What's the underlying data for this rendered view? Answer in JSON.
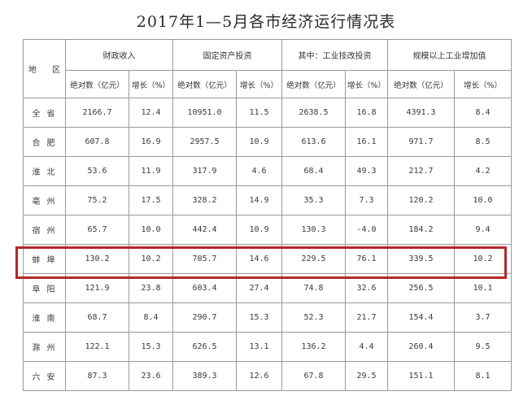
{
  "title": "2017年1—5月各市经济运行情况表",
  "header": {
    "area": "地 区",
    "groups": [
      "财政收入",
      "固定资产投资",
      "其中：工业技改投资",
      "规模以上工业增加值"
    ],
    "sub_absolute": "绝对数（亿元）",
    "sub_growth": "增长（%）"
  },
  "rows": [
    {
      "name": "全省",
      "v": [
        "2166.7",
        "12.4",
        "10951.0",
        "11.5",
        "2638.5",
        "16.8",
        "4391.3",
        "8.4"
      ]
    },
    {
      "name": "合肥",
      "v": [
        "607.8",
        "16.9",
        "2957.5",
        "10.9",
        "613.6",
        "16.1",
        "971.7",
        "8.5"
      ]
    },
    {
      "name": "淮北",
      "v": [
        "53.6",
        "11.9",
        "317.9",
        "4.6",
        "68.4",
        "49.3",
        "212.7",
        "4.2"
      ]
    },
    {
      "name": "亳州",
      "v": [
        "75.2",
        "17.5",
        "328.2",
        "14.9",
        "35.3",
        "7.3",
        "120.2",
        "10.0"
      ]
    },
    {
      "name": "宿州",
      "v": [
        "65.7",
        "10.0",
        "442.4",
        "10.9",
        "130.3",
        "-4.0",
        "184.2",
        "9.4"
      ]
    },
    {
      "name": "蚌埠",
      "v": [
        "130.2",
        "10.2",
        "705.7",
        "14.6",
        "229.5",
        "76.1",
        "339.5",
        "10.2"
      ]
    },
    {
      "name": "阜阳",
      "v": [
        "121.9",
        "23.8",
        "603.4",
        "27.4",
        "74.8",
        "32.6",
        "256.5",
        "10.1"
      ]
    },
    {
      "name": "淮南",
      "v": [
        "68.7",
        "8.4",
        "290.7",
        "15.3",
        "52.3",
        "21.7",
        "154.4",
        "3.7"
      ]
    },
    {
      "name": "滁州",
      "v": [
        "122.1",
        "15.3",
        "626.5",
        "13.1",
        "136.2",
        "4.4",
        "260.4",
        "9.5"
      ]
    },
    {
      "name": "六安",
      "v": [
        "87.3",
        "23.6",
        "389.3",
        "12.6",
        "67.8",
        "29.5",
        "151.1",
        "8.1"
      ]
    }
  ],
  "highlight_row": "蚌埠",
  "colors": {
    "highlight_border": "#b3272a",
    "grid_line": "#9a9a9a"
  }
}
